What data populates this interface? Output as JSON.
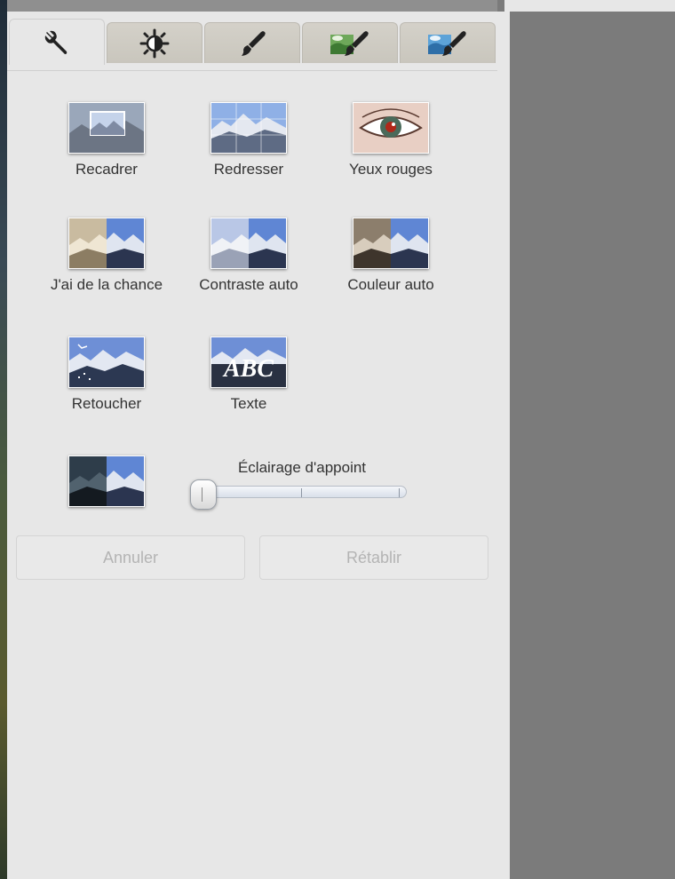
{
  "tabs": [
    {
      "icon": "wrench-icon",
      "active": true
    },
    {
      "icon": "brightness-icon",
      "active": false
    },
    {
      "icon": "brush-icon",
      "active": false
    },
    {
      "icon": "green-brush-icon",
      "active": false
    },
    {
      "icon": "blue-brush-icon",
      "active": false
    }
  ],
  "tools": {
    "crop": "Recadrer",
    "straighten": "Redresser",
    "red_eye": "Yeux rouges",
    "feeling_lucky": "J'ai de la chance",
    "auto_contrast": "Contraste auto",
    "auto_color": "Couleur auto",
    "retouch": "Retoucher",
    "text": "Texte",
    "text_thumb": "ABC"
  },
  "fill_light": {
    "label": "Éclairage d'appoint",
    "value": 0
  },
  "buttons": {
    "undo": "Annuler",
    "redo": "Rétablir"
  }
}
